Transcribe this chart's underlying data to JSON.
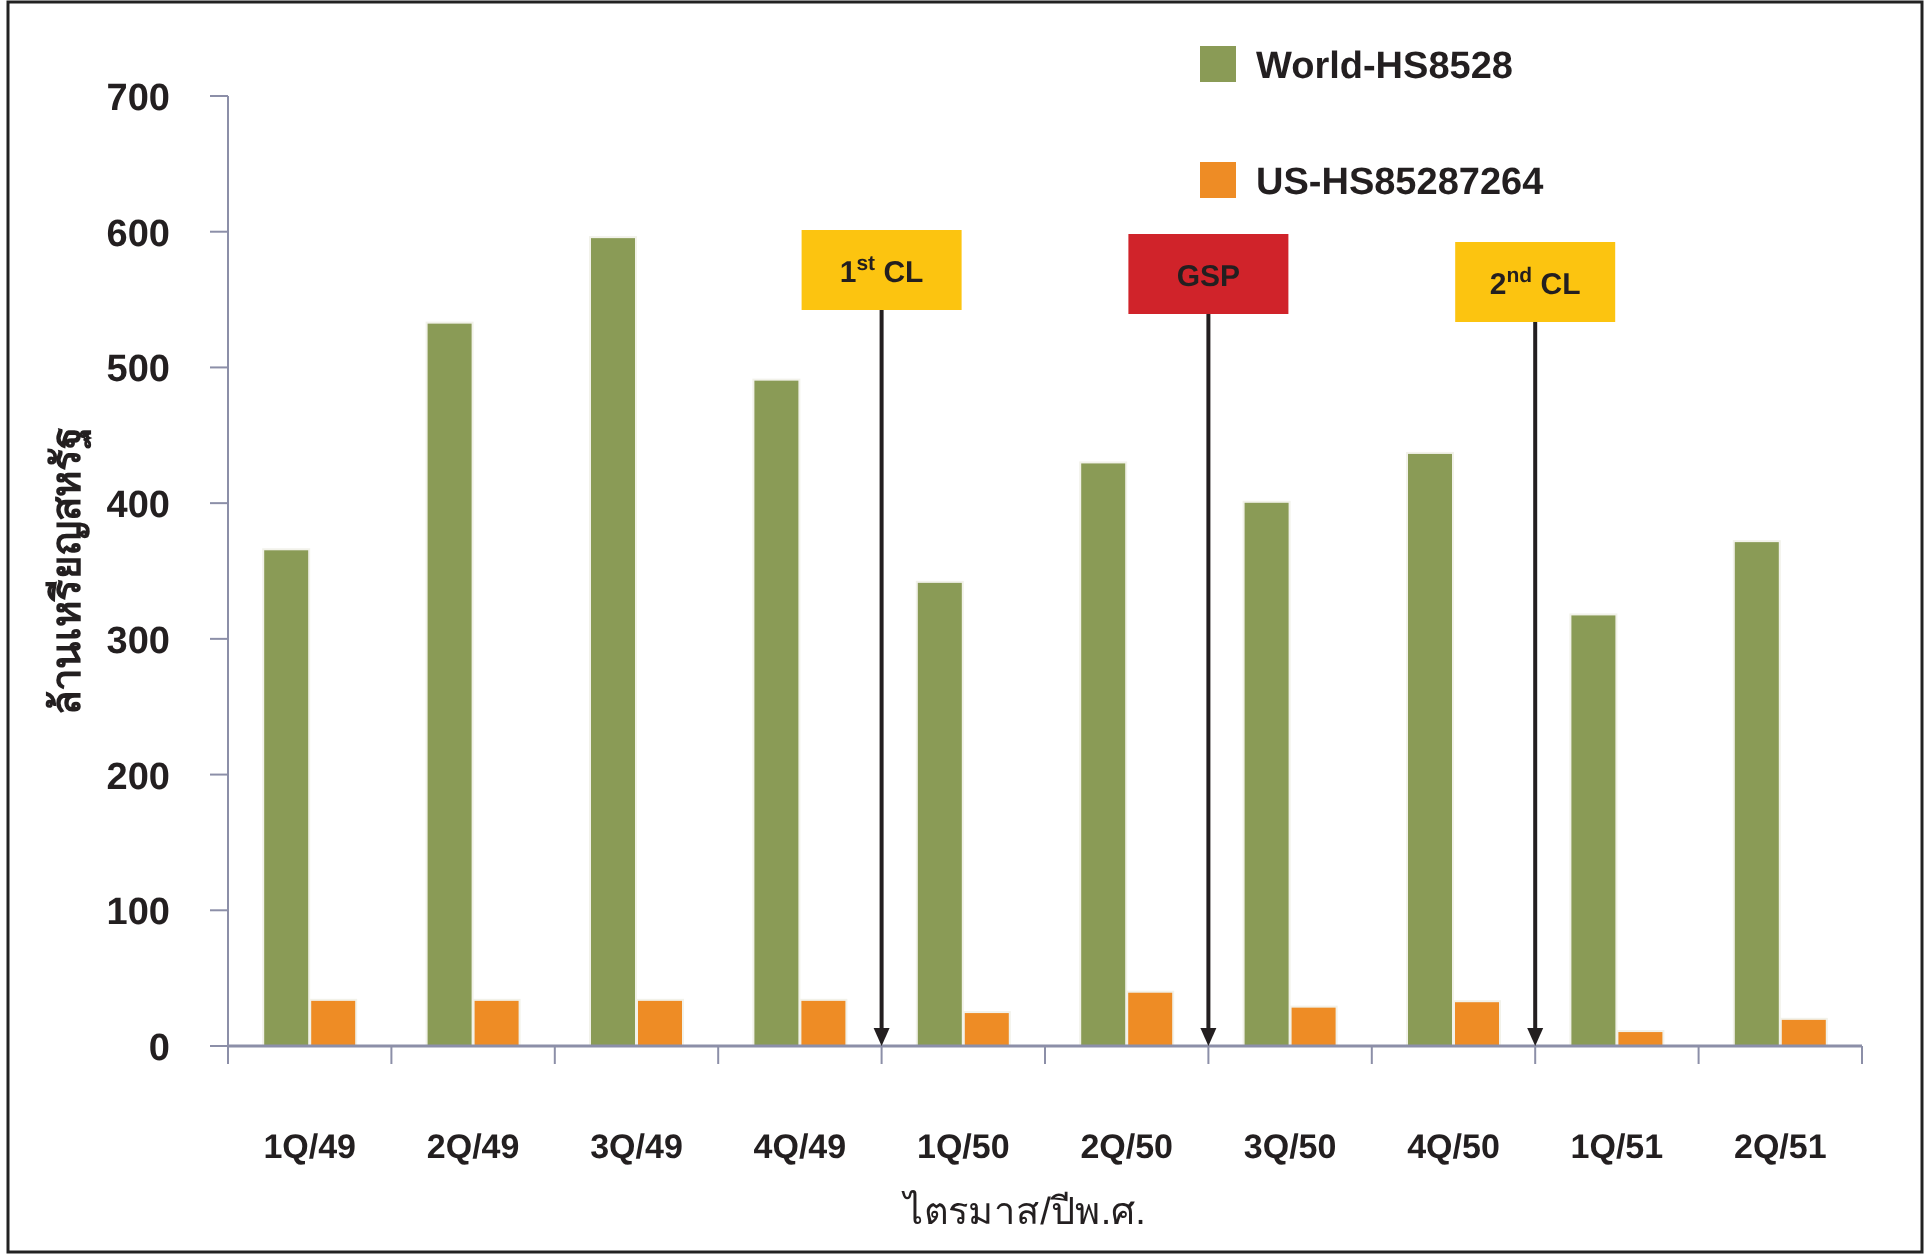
{
  "chart_data": {
    "type": "bar",
    "xlabel": "ไตรมาส/ปีพ.ศ.",
    "ylabel": "ล้านเหรียญสหรัฐ",
    "categories": [
      "1Q/49",
      "2Q/49",
      "3Q/49",
      "4Q/49",
      "1Q/50",
      "2Q/50",
      "3Q/50",
      "4Q/50",
      "1Q/51",
      "2Q/51"
    ],
    "series": [
      {
        "name": "World-HS8528",
        "color": "#8a9b56",
        "values": [
          366,
          533,
          596,
          491,
          342,
          430,
          401,
          437,
          318,
          372
        ]
      },
      {
        "name": "US-HS85287264",
        "color": "#ee8c25",
        "values": [
          34,
          34,
          34,
          34,
          25,
          40,
          29,
          33,
          11,
          20
        ]
      }
    ],
    "ylim": [
      0,
      700
    ],
    "yticks": [
      0,
      100,
      200,
      300,
      400,
      500,
      600,
      700
    ],
    "grid": false,
    "legend": "top right",
    "annotations": [
      "1$^{st}$ CL",
      "GSP",
      "2$^{nd}$ CL"
    ]
  }
}
